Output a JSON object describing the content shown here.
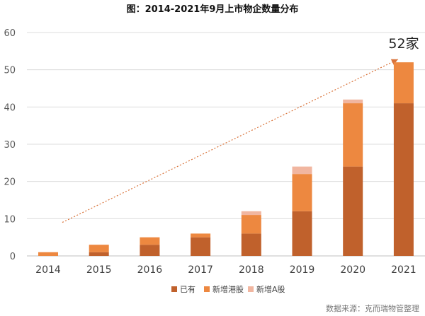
{
  "chart_data": {
    "type": "bar",
    "stacked": true,
    "title": "图：2014-2021年9月上市物企数量分布",
    "categories": [
      "2014",
      "2015",
      "2016",
      "2017",
      "2018",
      "2019",
      "2020",
      "2021"
    ],
    "series": [
      {
        "name": "已有",
        "color": "#c0612c",
        "values": [
          0,
          1,
          3,
          5,
          6,
          12,
          24,
          41
        ]
      },
      {
        "name": "新增港股",
        "color": "#ed8840",
        "values": [
          1,
          2,
          2,
          1,
          5,
          10,
          17,
          11
        ]
      },
      {
        "name": "新增A股",
        "color": "#f1b6a0",
        "values": [
          0,
          0,
          0,
          0,
          1,
          2,
          1,
          0
        ]
      }
    ],
    "ylim": [
      0,
      60
    ],
    "yticks": [
      0,
      10,
      20,
      30,
      40,
      50,
      60
    ],
    "xlabel": "",
    "ylabel": "",
    "grid": true,
    "legend_position": "bottom",
    "annotation": {
      "text": "52家",
      "trend_start": {
        "category": "2014",
        "value": 9
      },
      "trend_end": {
        "category": "2021",
        "value": 53
      },
      "trend_color": "#d9733a"
    }
  },
  "source": "数据来源：克而瑞物管整理"
}
